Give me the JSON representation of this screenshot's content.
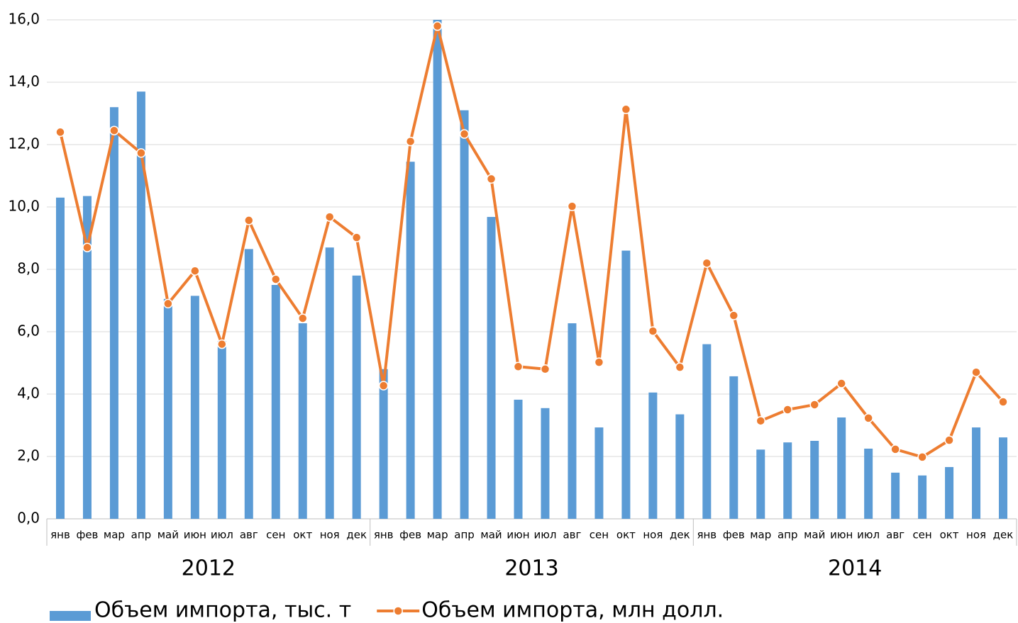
{
  "chart_data": {
    "type": "bar_line",
    "categories": [
      "янв",
      "фев",
      "мар",
      "апр",
      "май",
      "июн",
      "июл",
      "авг",
      "сен",
      "окт",
      "ноя",
      "дек",
      "янв",
      "фев",
      "мар",
      "апр",
      "май",
      "июн",
      "июл",
      "авг",
      "сен",
      "окт",
      "ноя",
      "дек",
      "янв",
      "фев",
      "мар",
      "апр",
      "май",
      "июн",
      "июл",
      "авг",
      "сен",
      "окт",
      "ноя",
      "дек"
    ],
    "year_groups": [
      "2012",
      "2013",
      "2014"
    ],
    "series": [
      {
        "name": "Объем импорта, тыс. т",
        "type": "bar",
        "color": "#5b9bd5",
        "values": [
          10.3,
          10.35,
          13.2,
          13.7,
          7.05,
          7.15,
          5.7,
          8.65,
          7.5,
          6.27,
          8.7,
          7.8,
          4.8,
          11.45,
          16.0,
          13.1,
          9.68,
          3.82,
          3.55,
          6.27,
          2.93,
          8.6,
          4.05,
          3.35,
          5.6,
          4.57,
          2.22,
          2.45,
          2.5,
          3.25,
          2.25,
          1.48,
          1.39,
          1.66,
          2.93,
          2.61
        ]
      },
      {
        "name": "Объем импорта, млн долл.",
        "type": "line",
        "color": "#ed7d31",
        "values": [
          12.4,
          8.7,
          12.45,
          11.73,
          6.9,
          7.95,
          5.6,
          9.57,
          7.68,
          6.43,
          9.68,
          9.02,
          4.27,
          12.1,
          15.8,
          12.34,
          10.9,
          4.88,
          4.8,
          10.02,
          5.02,
          13.13,
          6.02,
          4.86,
          8.2,
          6.52,
          3.14,
          3.5,
          3.66,
          4.34,
          3.23,
          2.23,
          1.98,
          2.52,
          4.7,
          3.75
        ]
      }
    ],
    "ylim": [
      0,
      16
    ],
    "yticks": [
      {
        "value": 0,
        "label": "0,0"
      },
      {
        "value": 2,
        "label": "2,0"
      },
      {
        "value": 4,
        "label": "4,0"
      },
      {
        "value": 6,
        "label": "6,0"
      },
      {
        "value": 8,
        "label": "8,0"
      },
      {
        "value": 10,
        "label": "10,0"
      },
      {
        "value": 12,
        "label": "12,0"
      },
      {
        "value": 14,
        "label": "14,0"
      },
      {
        "value": 16,
        "label": "16,0"
      }
    ],
    "grid": true
  }
}
